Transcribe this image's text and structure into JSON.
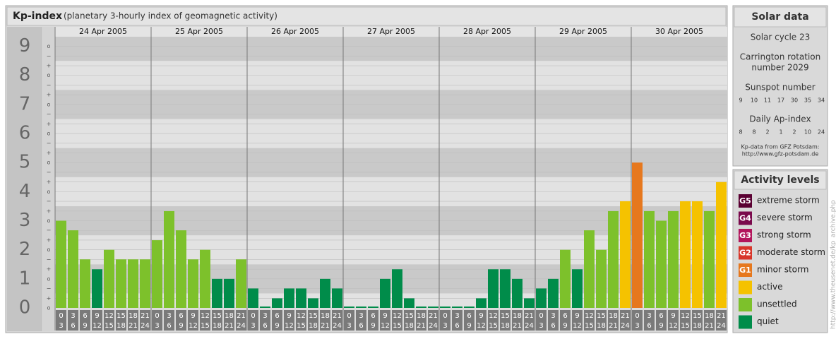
{
  "chart_data": {
    "type": "bar",
    "title": "Kp-index",
    "subtitle": "(planetary 3-hourly index of geomagnetic activity)",
    "days": [
      "24 Apr 2005",
      "25 Apr 2005",
      "26 Apr 2005",
      "27 Apr 2005",
      "28 Apr 2005",
      "29 Apr 2005",
      "30 Apr 2005"
    ],
    "hours_start": [
      "0",
      "3",
      "6",
      "9",
      "12",
      "15",
      "18",
      "21"
    ],
    "hours_end": [
      "3",
      "6",
      "9",
      "12",
      "15",
      "18",
      "21",
      "24"
    ],
    "values": [
      3,
      2.67,
      1.67,
      1.33,
      2,
      1.67,
      1.67,
      1.67,
      2.33,
      3.33,
      2.67,
      1.67,
      2,
      1,
      1,
      1.67,
      0.67,
      0,
      0.33,
      0.67,
      0.67,
      0.33,
      1,
      0.67,
      0,
      0,
      0,
      1,
      1.33,
      0.33,
      0,
      0,
      0,
      0,
      0,
      0.33,
      1.33,
      1.33,
      1,
      0.33,
      0.67,
      1,
      2,
      1.33,
      2.67,
      2,
      3.33,
      3.67,
      5,
      3.33,
      3,
      3.33,
      3.67,
      3.67,
      3.33,
      4.33
    ],
    "colors": [
      "#7dc12b",
      "#7dc12b",
      "#7dc12b",
      "#008c4a",
      "#7dc12b",
      "#7dc12b",
      "#7dc12b",
      "#7dc12b",
      "#7dc12b",
      "#7dc12b",
      "#7dc12b",
      "#7dc12b",
      "#7dc12b",
      "#008c4a",
      "#008c4a",
      "#7dc12b",
      "#008c4a",
      "#008c4a",
      "#008c4a",
      "#008c4a",
      "#008c4a",
      "#008c4a",
      "#008c4a",
      "#008c4a",
      "#008c4a",
      "#008c4a",
      "#008c4a",
      "#008c4a",
      "#008c4a",
      "#008c4a",
      "#008c4a",
      "#008c4a",
      "#008c4a",
      "#008c4a",
      "#008c4a",
      "#008c4a",
      "#008c4a",
      "#008c4a",
      "#008c4a",
      "#008c4a",
      "#008c4a",
      "#008c4a",
      "#7dc12b",
      "#008c4a",
      "#7dc12b",
      "#7dc12b",
      "#7dc12b",
      "#f5c200",
      "#e6781e",
      "#7dc12b",
      "#7dc12b",
      "#7dc12b",
      "#f5c200",
      "#f5c200",
      "#7dc12b",
      "#f5c200"
    ],
    "ylim": [
      0,
      9.33
    ],
    "yticks": [
      0,
      1,
      2,
      3,
      4,
      5,
      6,
      7,
      8,
      9
    ],
    "sublabels": {
      "minus": "−",
      "zero": "o",
      "plus": "+"
    },
    "solar": {
      "title": "Solar data",
      "cycle": "Solar cycle 23",
      "carrington": [
        "Carrington rotation",
        "number 2029"
      ],
      "sunspot_title": "Sunspot number",
      "sunspot": [
        9,
        10,
        11,
        17,
        30,
        35,
        34
      ],
      "ap_title": "Daily Ap-index",
      "ap": [
        8,
        8,
        2,
        1,
        2,
        10,
        24
      ],
      "source": [
        "Kp-data from GFZ Potsdam:",
        "http://www.gfz-potsdam.de"
      ]
    },
    "legend": {
      "title": "Activity levels",
      "items": [
        {
          "code": "G5",
          "name": "extreme storm",
          "color": "#5a0032"
        },
        {
          "code": "G4",
          "name": "severe storm",
          "color": "#7a0a4c"
        },
        {
          "code": "G3",
          "name": "strong storm",
          "color": "#b3165c"
        },
        {
          "code": "G2",
          "name": "moderate storm",
          "color": "#d8362a"
        },
        {
          "code": "G1",
          "name": "minor storm",
          "color": "#e6781e"
        },
        {
          "name": "active",
          "color": "#f5c200"
        },
        {
          "name": "unsettled",
          "color": "#7dc12b"
        },
        {
          "name": "quiet",
          "color": "#008c4a"
        }
      ]
    },
    "credit": "http://www.theusenet.de/kp_archive.php"
  }
}
